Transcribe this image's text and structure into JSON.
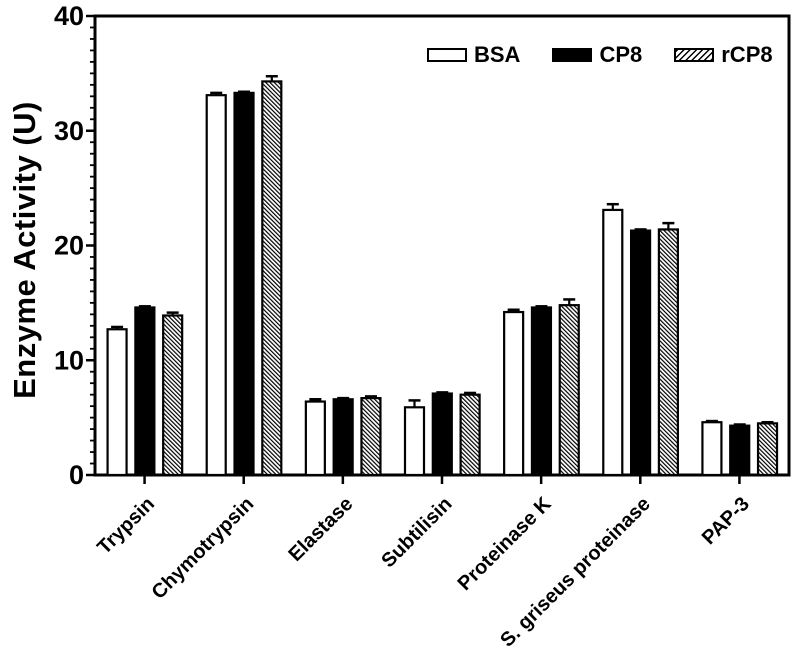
{
  "figure": {
    "background_color": "#ffffff",
    "axis_color": "#000000"
  },
  "chart_data": {
    "type": "bar",
    "title": "",
    "xlabel": "",
    "ylabel": "Enzyme Activity (U)",
    "ylim": [
      0,
      40
    ],
    "yticks": [
      0,
      10,
      20,
      30,
      40
    ],
    "minor_tick_step": 1,
    "grid": false,
    "legend_position": "top-right-inside",
    "error_bars": "upper-cap",
    "categories": [
      "Trypsin",
      "Chymotrypsin",
      "Elastase",
      "Subtilisin",
      "Proteinase K",
      "S. griseus proteinase",
      "PAP-3"
    ],
    "series": [
      {
        "name": "BSA",
        "fill": "white",
        "values": [
          12.7,
          33.1,
          6.4,
          5.9,
          14.2,
          23.1,
          4.6
        ],
        "errors": [
          0.2,
          0.2,
          0.2,
          0.6,
          0.2,
          0.5,
          0.1
        ]
      },
      {
        "name": "CP8",
        "fill": "black",
        "values": [
          14.6,
          33.3,
          6.6,
          7.1,
          14.6,
          21.3,
          4.3
        ],
        "errors": [
          0.1,
          0.1,
          0.1,
          0.1,
          0.1,
          0.1,
          0.1
        ]
      },
      {
        "name": "rCP8",
        "fill": "hatch",
        "values": [
          13.9,
          34.3,
          6.7,
          7.0,
          14.8,
          21.4,
          4.5
        ],
        "errors": [
          0.25,
          0.45,
          0.15,
          0.15,
          0.5,
          0.55,
          0.1
        ]
      }
    ],
    "colors": {
      "bar_outline": "#000000",
      "bsa_fill": "#ffffff",
      "cp8_fill": "#000000",
      "rcp8_fill": "hatched-diagonal"
    }
  }
}
